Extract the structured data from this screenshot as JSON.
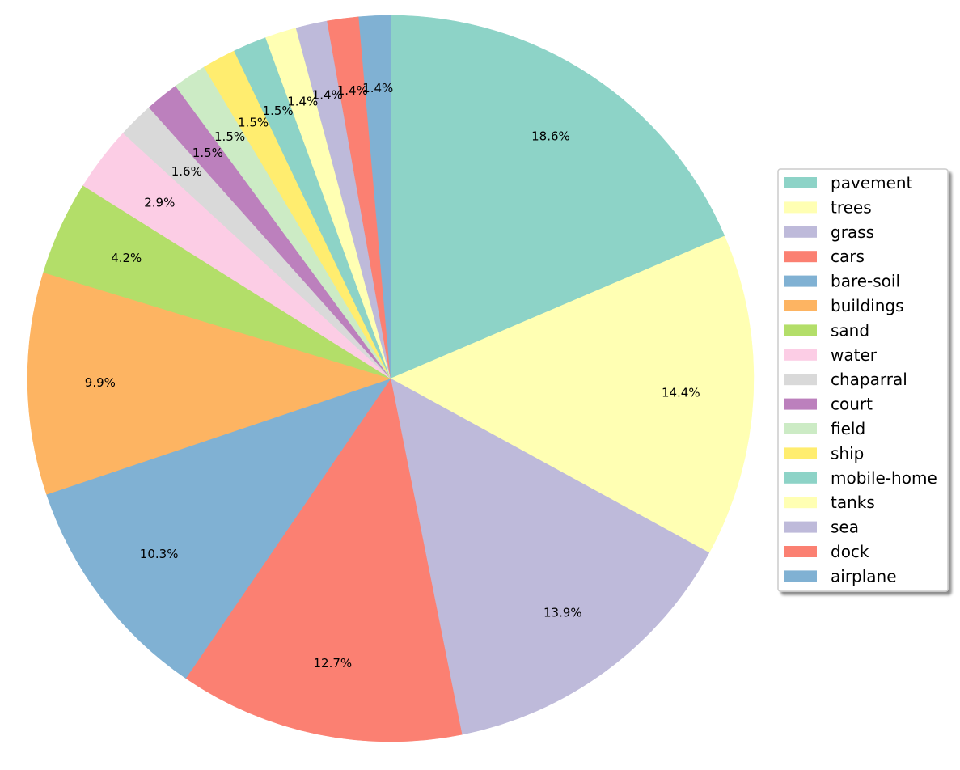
{
  "chart_data": {
    "type": "pie",
    "title": "",
    "start_angle_deg": 90,
    "direction": "clockwise",
    "legend_position": "right",
    "slices": [
      {
        "label": "pavement",
        "value": 18.6,
        "pct_label": "18.6%",
        "color": "#8dd3c7"
      },
      {
        "label": "trees",
        "value": 14.4,
        "pct_label": "14.4%",
        "color": "#ffffb3"
      },
      {
        "label": "grass",
        "value": 13.9,
        "pct_label": "13.9%",
        "color": "#bebada"
      },
      {
        "label": "cars",
        "value": 12.7,
        "pct_label": "12.7%",
        "color": "#fb8072"
      },
      {
        "label": "bare-soil",
        "value": 10.3,
        "pct_label": "10.3%",
        "color": "#80b1d3"
      },
      {
        "label": "buildings",
        "value": 9.9,
        "pct_label": "9.9%",
        "color": "#fdb462"
      },
      {
        "label": "sand",
        "value": 4.2,
        "pct_label": "4.2%",
        "color": "#b3de69"
      },
      {
        "label": "water",
        "value": 2.9,
        "pct_label": "2.9%",
        "color": "#fccde5"
      },
      {
        "label": "chaparral",
        "value": 1.6,
        "pct_label": "1.6%",
        "color": "#d9d9d9"
      },
      {
        "label": "court",
        "value": 1.5,
        "pct_label": "1.5%",
        "color": "#bc80bd"
      },
      {
        "label": "field",
        "value": 1.5,
        "pct_label": "1.5%",
        "color": "#ccebc5"
      },
      {
        "label": "ship",
        "value": 1.5,
        "pct_label": "1.5%",
        "color": "#ffed6f"
      },
      {
        "label": "mobile-home",
        "value": 1.5,
        "pct_label": "1.5%",
        "color": "#8dd3c7"
      },
      {
        "label": "tanks",
        "value": 1.4,
        "pct_label": "1.4%",
        "color": "#ffffb3"
      },
      {
        "label": "sea",
        "value": 1.4,
        "pct_label": "1.4%",
        "color": "#bebada"
      },
      {
        "label": "dock",
        "value": 1.4,
        "pct_label": "1.4%",
        "color": "#fb8072"
      },
      {
        "label": "airplane",
        "value": 1.4,
        "pct_label": "1.4%",
        "color": "#80b1d3"
      }
    ]
  }
}
